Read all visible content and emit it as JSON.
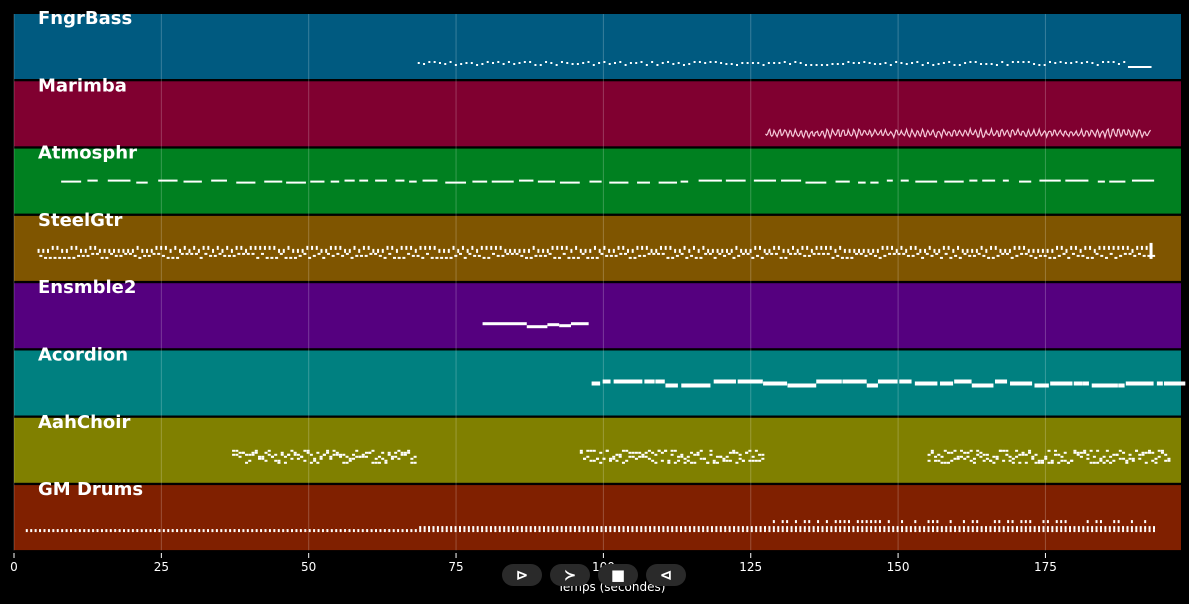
{
  "chart_data": {
    "type": "piano-roll",
    "xlabel": "Temps (secondes)",
    "xlim": [
      0,
      198
    ],
    "xticks": [
      0,
      25,
      50,
      75,
      100,
      125,
      150,
      175
    ],
    "grid": true,
    "tracks": [
      {
        "name": "FngrBass",
        "color": "#005a80",
        "start": 68.5,
        "end": 193,
        "pattern": "sparse"
      },
      {
        "name": "Marimba",
        "color": "#800030",
        "start": 127.5,
        "end": 193,
        "pattern": "wave"
      },
      {
        "name": "Atmosphr",
        "color": "#008020",
        "start": 8,
        "end": 191.5,
        "pattern": "dash"
      },
      {
        "name": "SteelGtr",
        "color": "#7f5500",
        "start": 4,
        "end": 193,
        "pattern": "dense"
      },
      {
        "name": "Ensmble2",
        "color": "#55007f",
        "start": 79.5,
        "end": 97.5,
        "pattern": "few"
      },
      {
        "name": "Acordion",
        "color": "#008080",
        "start": 98,
        "end": 196,
        "pattern": "block"
      },
      {
        "name": "AahChoir",
        "color": "#808000",
        "segments": [
          [
            37,
            68
          ],
          [
            96,
            127
          ],
          [
            155,
            196
          ]
        ],
        "pattern": "choir"
      },
      {
        "name": "GM Drums",
        "color": "#802000",
        "start": 2,
        "end": 194,
        "pattern": "drums"
      }
    ]
  },
  "controls": {
    "play": "⊳",
    "forward": "≻",
    "stop": "■",
    "back": "⊲"
  }
}
